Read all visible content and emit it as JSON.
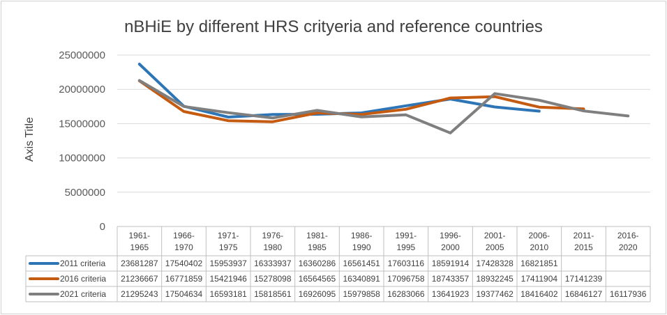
{
  "chart_data": {
    "type": "line",
    "title": "nBHiE by different HRS crityeria and reference countries",
    "ylabel": "Axis Title",
    "xlabel": "",
    "ylim": [
      0,
      25000000
    ],
    "yticks": [
      "0",
      "5000000",
      "10000000",
      "15000000",
      "20000000",
      "25000000"
    ],
    "ytick_values": [
      0,
      5000000,
      10000000,
      15000000,
      20000000,
      25000000
    ],
    "grid": true,
    "legend": "data-table",
    "categories": [
      [
        "1961-",
        "1965"
      ],
      [
        "1966-",
        "1970"
      ],
      [
        "1971-",
        "1975"
      ],
      [
        "1976-",
        "1980"
      ],
      [
        "1981-",
        "1985"
      ],
      [
        "1986-",
        "1990"
      ],
      [
        "1991-",
        "1995"
      ],
      [
        "1996-",
        "2000"
      ],
      [
        "2001-",
        "2005"
      ],
      [
        "2006-",
        "2010"
      ],
      [
        "2011-",
        "2015"
      ],
      [
        "2016-",
        "2020"
      ]
    ],
    "series": [
      {
        "name": "2011 criteria",
        "color": "#2e75b6",
        "values": [
          23681287,
          17540402,
          15953937,
          16333937,
          16360286,
          16561451,
          17603116,
          18591914,
          17428328,
          16821851,
          null,
          null
        ]
      },
      {
        "name": "2016 criteria",
        "color": "#c55a11",
        "values": [
          21236667,
          16771859,
          15421946,
          15278098,
          16564565,
          16340891,
          17096758,
          18743357,
          18932245,
          17411904,
          17141239,
          null
        ]
      },
      {
        "name": "2021 criteria",
        "color": "#7f7f7f",
        "values": [
          21295243,
          17504634,
          16593181,
          15818561,
          16926095,
          15979858,
          16283066,
          13641923,
          19377462,
          18416402,
          16846127,
          16117936
        ]
      }
    ]
  }
}
